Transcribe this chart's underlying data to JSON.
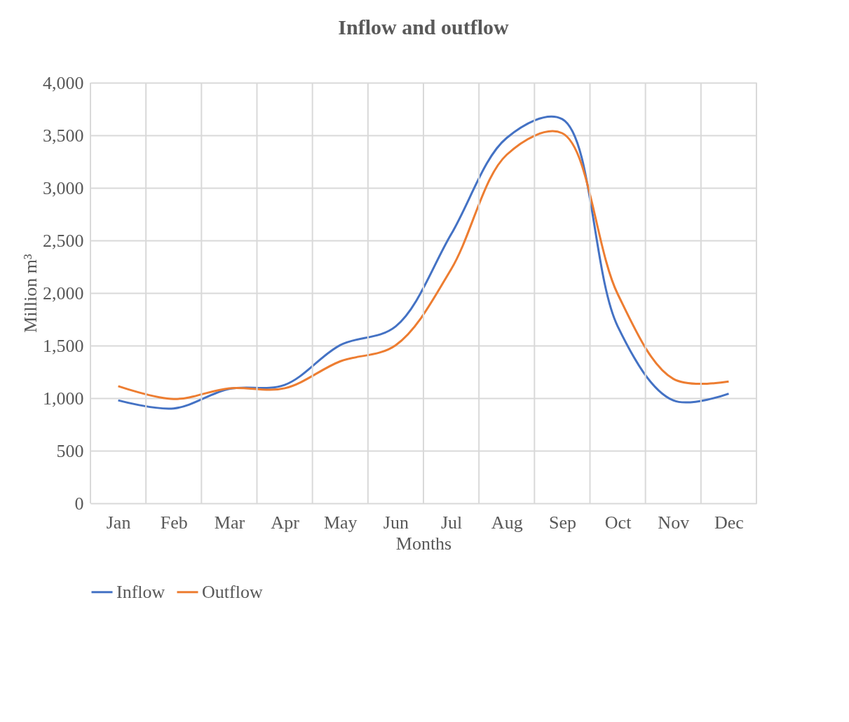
{
  "chart_data": {
    "type": "line",
    "title": "Inflow and outflow",
    "xlabel": "Months",
    "ylabel": "Million m³",
    "categories": [
      "Jan",
      "Feb",
      "Mar",
      "Apr",
      "May",
      "Jun",
      "Jul",
      "Aug",
      "Sep",
      "Oct",
      "Nov",
      "Dec"
    ],
    "series": [
      {
        "name": "Inflow",
        "color": "#4472c4",
        "values": [
          979,
          902,
          1088,
          1126,
          1504,
          1683,
          2560,
          3475,
          3654,
          1683,
          979,
          1043
        ]
      },
      {
        "name": "Outflow",
        "color": "#ed7d31",
        "values": [
          1114,
          992,
          1094,
          1094,
          1350,
          1504,
          2227,
          3315,
          3520,
          1990,
          1184,
          1158
        ]
      }
    ],
    "ylim": [
      0,
      4000
    ],
    "yticks": [
      0,
      {
        "value": 500,
        "label": "500"
      },
      {
        "value": 1000,
        "label": "1,000"
      },
      {
        "value": 1500,
        "label": "1,500"
      },
      {
        "value": 2000,
        "label": "2,000"
      },
      {
        "value": 2500,
        "label": "2,500"
      },
      {
        "value": 3000,
        "label": "3,000"
      },
      {
        "value": 3500,
        "label": "3,500"
      },
      {
        "value": 4000,
        "label": "4,000"
      }
    ],
    "grid": true,
    "legend": "bottom",
    "marker": "none",
    "line_style": "solid"
  }
}
